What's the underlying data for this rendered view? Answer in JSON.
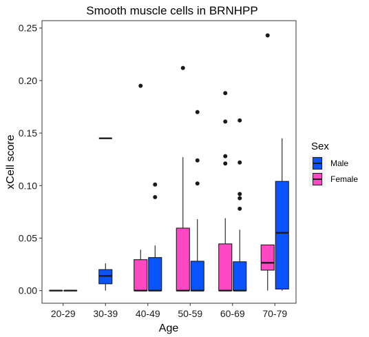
{
  "chart_data": {
    "type": "boxplot",
    "title": "Smooth muscle cells in BRNHPP",
    "xlabel": "Age",
    "ylabel": "xCell score",
    "categories": [
      "20-29",
      "30-39",
      "40-49",
      "50-59",
      "60-69",
      "70-79"
    ],
    "ylim": [
      -0.012,
      0.257
    ],
    "yticks": [
      0.0,
      0.05,
      0.1,
      0.15,
      0.2,
      0.25
    ],
    "ytick_labels": [
      "0.00",
      "0.05",
      "0.10",
      "0.15",
      "0.20",
      "0.25"
    ],
    "grid": false,
    "legend": {
      "title": "Sex",
      "placement": "right",
      "entries": [
        {
          "name": "Male",
          "color": "#0a54ff"
        },
        {
          "name": "Female",
          "color": "#ff48c4"
        }
      ]
    },
    "series": [
      {
        "name": "Female",
        "color": "#ff48c4",
        "boxes": [
          {
            "category": "20-29",
            "min": 0.0,
            "q1": 0.0,
            "median": 0.0,
            "q3": 0.0,
            "max": 0.0,
            "outliers": []
          },
          null,
          {
            "category": "40-49",
            "min": 0.0,
            "q1": 0.0,
            "median": 0.0,
            "q3": 0.0295,
            "max": 0.039,
            "outliers": [
              0.195
            ]
          },
          {
            "category": "50-59",
            "min": 0.0,
            "q1": 0.0,
            "median": 0.0,
            "q3": 0.0595,
            "max": 0.127,
            "outliers": [
              0.212
            ]
          },
          {
            "category": "60-69",
            "min": 0.0,
            "q1": 0.0,
            "median": 0.0,
            "q3": 0.0445,
            "max": 0.069,
            "outliers": [
              0.121,
              0.128,
              0.161,
              0.188
            ]
          },
          {
            "category": "70-79",
            "min": 0.0,
            "q1": 0.0195,
            "median": 0.0265,
            "q3": 0.0435,
            "max": 0.0435,
            "outliers": [
              0.243
            ]
          }
        ]
      },
      {
        "name": "Male",
        "color": "#0a54ff",
        "boxes": [
          {
            "category": "20-29",
            "min": 0.0,
            "q1": 0.0,
            "median": 0.0,
            "q3": 0.0,
            "max": 0.0,
            "outliers": []
          },
          {
            "category": "30-39",
            "min": 0.0,
            "q1": 0.0065,
            "median": 0.014,
            "q3": 0.02,
            "max": 0.026,
            "outliers": [],
            "single": true
          },
          {
            "category": "40-49",
            "min": 0.0,
            "q1": 0.0,
            "median": 0.0,
            "q3": 0.0315,
            "max": 0.043,
            "outliers": [
              0.089,
              0.101
            ]
          },
          {
            "category": "50-59",
            "min": 0.0,
            "q1": 0.0,
            "median": 0.0,
            "q3": 0.028,
            "max": 0.068,
            "outliers": [
              0.102,
              0.124,
              0.17
            ]
          },
          {
            "category": "60-69",
            "min": 0.0,
            "q1": 0.0,
            "median": 0.0,
            "q3": 0.0275,
            "max": 0.058,
            "outliers": [
              0.078,
              0.088,
              0.092,
              0.122,
              0.162
            ]
          },
          {
            "category": "70-79",
            "min": 0.0,
            "q1": 0.0015,
            "median": 0.055,
            "q3": 0.104,
            "max": 0.145,
            "outliers": []
          }
        ]
      }
    ],
    "extra_marks": [
      {
        "category": "30-39",
        "type": "line",
        "value": 0.145,
        "color": "#1a1a1a"
      }
    ]
  }
}
